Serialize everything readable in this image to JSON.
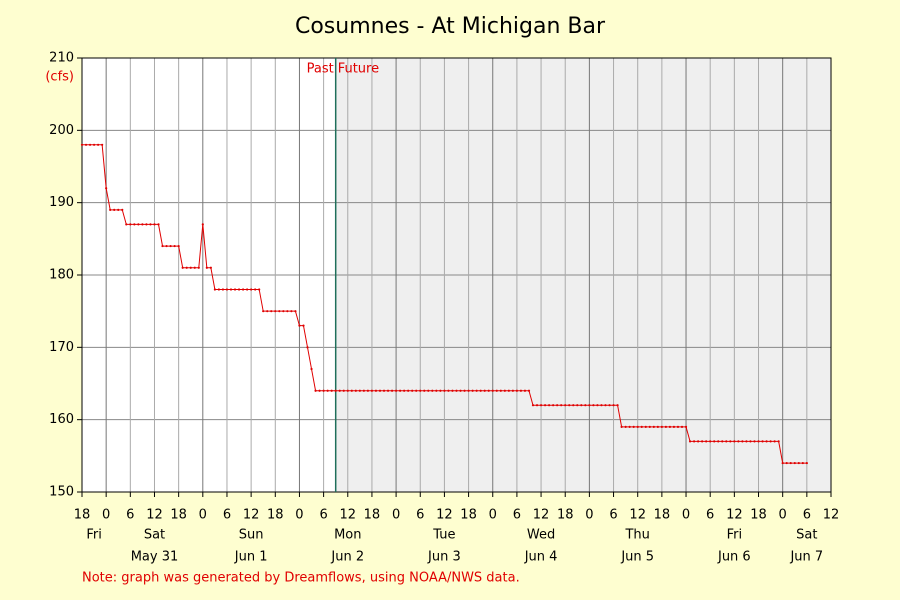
{
  "chart_data": {
    "type": "line",
    "title": "Cosumnes - At Michigan Bar",
    "y_unit": "(cfs)",
    "note": "Note: graph was generated by Dreamflows, using NOAA/NWS data.",
    "past_label": "Past",
    "future_label": "Future",
    "now_x": 63,
    "xlim": [
      0,
      186
    ],
    "ylim": [
      150,
      210
    ],
    "yticks": [
      150,
      160,
      170,
      180,
      190,
      200,
      210
    ],
    "grid": true,
    "xticks": [
      {
        "value": 0,
        "label": "18"
      },
      {
        "value": 6,
        "label": "0"
      },
      {
        "value": 12,
        "label": "6"
      },
      {
        "value": 18,
        "label": "12"
      },
      {
        "value": 24,
        "label": "18"
      },
      {
        "value": 30,
        "label": "0"
      },
      {
        "value": 36,
        "label": "6"
      },
      {
        "value": 42,
        "label": "12"
      },
      {
        "value": 48,
        "label": "18"
      },
      {
        "value": 54,
        "label": "0"
      },
      {
        "value": 60,
        "label": "6"
      },
      {
        "value": 66,
        "label": "12"
      },
      {
        "value": 72,
        "label": "18"
      },
      {
        "value": 78,
        "label": "0"
      },
      {
        "value": 84,
        "label": "6"
      },
      {
        "value": 90,
        "label": "12"
      },
      {
        "value": 96,
        "label": "18"
      },
      {
        "value": 102,
        "label": "0"
      },
      {
        "value": 108,
        "label": "6"
      },
      {
        "value": 114,
        "label": "12"
      },
      {
        "value": 120,
        "label": "18"
      },
      {
        "value": 126,
        "label": "0"
      },
      {
        "value": 132,
        "label": "6"
      },
      {
        "value": 138,
        "label": "12"
      },
      {
        "value": 144,
        "label": "18"
      },
      {
        "value": 150,
        "label": "0"
      },
      {
        "value": 156,
        "label": "6"
      },
      {
        "value": 162,
        "label": "12"
      },
      {
        "value": 168,
        "label": "18"
      },
      {
        "value": 174,
        "label": "0"
      },
      {
        "value": 180,
        "label": "6"
      },
      {
        "value": 186,
        "label": "12"
      }
    ],
    "day_labels": [
      {
        "value": 3,
        "day": "Fri"
      },
      {
        "value": 18,
        "day": "Sat",
        "date": "May 31"
      },
      {
        "value": 42,
        "day": "Sun",
        "date": "Jun 1"
      },
      {
        "value": 66,
        "day": "Mon",
        "date": "Jun 2"
      },
      {
        "value": 90,
        "day": "Tue",
        "date": "Jun 3"
      },
      {
        "value": 114,
        "day": "Wed",
        "date": "Jun 4"
      },
      {
        "value": 138,
        "day": "Thu",
        "date": "Jun 5"
      },
      {
        "value": 162,
        "day": "Fri",
        "date": "Jun 6"
      },
      {
        "value": 180,
        "day": "Sat",
        "date": "Jun 7"
      }
    ],
    "x": [
      0,
      1,
      2,
      3,
      4,
      5,
      6,
      7,
      8,
      9,
      10,
      11,
      12,
      13,
      14,
      15,
      16,
      17,
      18,
      19,
      20,
      21,
      22,
      23,
      24,
      25,
      26,
      27,
      28,
      29,
      30,
      31,
      32,
      33,
      34,
      35,
      36,
      37,
      38,
      39,
      40,
      41,
      42,
      43,
      44,
      45,
      46,
      47,
      48,
      49,
      50,
      51,
      52,
      53,
      54,
      55,
      56,
      57,
      58,
      59,
      60,
      61,
      62,
      63,
      64,
      65,
      66,
      67,
      68,
      69,
      70,
      71,
      72,
      73,
      74,
      75,
      76,
      77,
      78,
      79,
      80,
      81,
      82,
      83,
      84,
      85,
      86,
      87,
      88,
      89,
      90,
      91,
      92,
      93,
      94,
      95,
      96,
      97,
      98,
      99,
      100,
      101,
      102,
      103,
      104,
      105,
      106,
      107,
      108,
      109,
      110,
      111,
      112,
      113,
      114,
      115,
      116,
      117,
      118,
      119,
      120,
      121,
      122,
      123,
      124,
      125,
      126,
      127,
      128,
      129,
      130,
      131,
      132,
      133,
      134,
      135,
      136,
      137,
      138,
      139,
      140,
      141,
      142,
      143,
      144,
      145,
      146,
      147,
      148,
      149,
      150,
      151,
      152,
      153,
      154,
      155,
      156,
      157,
      158,
      159,
      160,
      161,
      162,
      163,
      164,
      165,
      166,
      167,
      168,
      169,
      170,
      171,
      172,
      173,
      174,
      175,
      176,
      177,
      178,
      179,
      180
    ],
    "series": [
      {
        "color": "#e00000",
        "values": [
          198,
          198,
          198,
          198,
          198,
          198,
          192,
          189,
          189,
          189,
          189,
          187,
          187,
          187,
          187,
          187,
          187,
          187,
          187,
          187,
          184,
          184,
          184,
          184,
          184,
          181,
          181,
          181,
          181,
          181,
          187,
          181,
          181,
          178,
          178,
          178,
          178,
          178,
          178,
          178,
          178,
          178,
          178,
          178,
          178,
          175,
          175,
          175,
          175,
          175,
          175,
          175,
          175,
          175,
          173,
          173,
          170,
          167,
          164,
          164,
          164,
          164,
          164,
          164,
          164,
          164,
          164,
          164,
          164,
          164,
          164,
          164,
          164,
          164,
          164,
          164,
          164,
          164,
          164,
          164,
          164,
          164,
          164,
          164,
          164,
          164,
          164,
          164,
          164,
          164,
          164,
          164,
          164,
          164,
          164,
          164,
          164,
          164,
          164,
          164,
          164,
          164,
          164,
          164,
          164,
          164,
          164,
          164,
          164,
          164,
          164,
          164,
          162,
          162,
          162,
          162,
          162,
          162,
          162,
          162,
          162,
          162,
          162,
          162,
          162,
          162,
          162,
          162,
          162,
          162,
          162,
          162,
          162,
          162,
          159,
          159,
          159,
          159,
          159,
          159,
          159,
          159,
          159,
          159,
          159,
          159,
          159,
          159,
          159,
          159,
          159,
          157,
          157,
          157,
          157,
          157,
          157,
          157,
          157,
          157,
          157,
          157,
          157,
          157,
          157,
          157,
          157,
          157,
          157,
          157,
          157,
          157,
          157,
          157,
          154,
          154,
          154,
          154,
          154,
          154,
          154
        ]
      }
    ]
  }
}
